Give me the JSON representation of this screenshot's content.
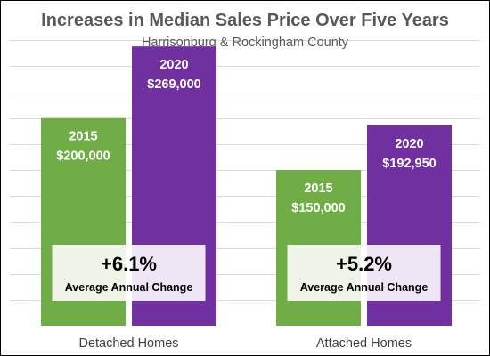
{
  "chart_data": {
    "type": "bar",
    "title": "Increases in Median Sales Price Over Five Years",
    "subtitle": "Harrisonburg & Rockingham County",
    "categories": [
      "Detached Homes",
      "Attached Homes"
    ],
    "series": [
      {
        "name": "2015",
        "values": [
          200000,
          150000
        ],
        "labels": [
          "$200,000",
          "$150,000"
        ],
        "color": "#70ad47"
      },
      {
        "name": "2020",
        "values": [
          269000,
          192950
        ],
        "labels": [
          "$269,000",
          "$192,950"
        ],
        "color": "#7030a0"
      }
    ],
    "annotations": [
      {
        "category": "Detached Homes",
        "value": "+6.1%",
        "caption": "Average Annual Change"
      },
      {
        "category": "Attached Homes",
        "value": "+5.2%",
        "caption": "Average Annual Change"
      }
    ],
    "ylim": [
      0,
      300000
    ],
    "grid": true,
    "gridline_color": "#d9d9d9",
    "legend": "none"
  }
}
